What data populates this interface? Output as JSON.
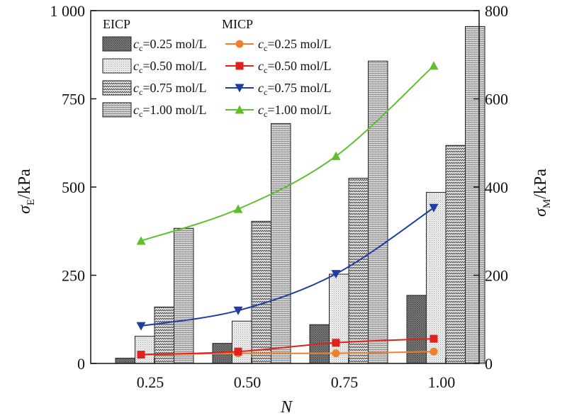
{
  "chart_data": {
    "type": "bar",
    "categories": [
      "0.25",
      "0.50",
      "0.75",
      "1.00"
    ],
    "xlabel": "N",
    "ylabel": {
      "symbol": "σ",
      "sub": "E",
      "unit": "/kPa"
    },
    "y2label": {
      "symbol": "σ",
      "sub": "M",
      "unit": "/kPa"
    },
    "ylim": [
      0,
      1000
    ],
    "y2lim": [
      0,
      800
    ],
    "yticks": [
      {
        "value": 0,
        "label": "0"
      },
      {
        "value": 250,
        "label": "250"
      },
      {
        "value": 500,
        "label": "500"
      },
      {
        "value": 750,
        "label": "750"
      },
      {
        "value": 1000,
        "label": "1 000"
      }
    ],
    "y2ticks": [
      {
        "value": 0,
        "label": "0"
      },
      {
        "value": 200,
        "label": "200"
      },
      {
        "value": 400,
        "label": "400"
      },
      {
        "value": 600,
        "label": "600"
      },
      {
        "value": 800,
        "label": "800"
      }
    ],
    "grid": false,
    "legend_position": "top-left",
    "legend_groups": {
      "bars": "EICP",
      "lines": "MICP"
    },
    "bar_series": [
      {
        "name": "cc=0.25 mol/L",
        "sym": "c",
        "sub": "c",
        "rest": "=0.25 mol/L",
        "pattern": "dense",
        "values": [
          15,
          57,
          110,
          193
        ]
      },
      {
        "name": "cc=0.50 mol/L",
        "sym": "c",
        "sub": "c",
        "rest": "=0.50 mol/L",
        "pattern": "dots",
        "values": [
          77,
          120,
          253,
          485
        ]
      },
      {
        "name": "cc=0.75 mol/L",
        "sym": "c",
        "sub": "c",
        "rest": "=0.75 mol/L",
        "pattern": "wave",
        "values": [
          160,
          403,
          525,
          618
        ]
      },
      {
        "name": "cc=1.00 mol/L",
        "sym": "c",
        "sub": "c",
        "rest": "=1.00 mol/L",
        "pattern": "fine",
        "values": [
          383,
          680,
          857,
          955
        ]
      }
    ],
    "line_series": [
      {
        "name": "cc=0.25 mol/L",
        "sym": "c",
        "sub": "c",
        "rest": "=0.25 mol/L",
        "color": "#f07f2a",
        "marker": "circle",
        "values": [
          20,
          23,
          23,
          27
        ]
      },
      {
        "name": "cc=0.50 mol/L",
        "sym": "c",
        "sub": "c",
        "rest": "=0.50 mol/L",
        "color": "#e0221f",
        "marker": "square",
        "values": [
          20,
          27,
          47,
          56
        ]
      },
      {
        "name": "cc=0.75 mol/L",
        "sym": "c",
        "sub": "c",
        "rest": "=0.75 mol/L",
        "color": "#1f3ea3",
        "marker": "triangle-down",
        "values": [
          85,
          120,
          203,
          353
        ]
      },
      {
        "name": "cc=1.00 mol/L",
        "sym": "c",
        "sub": "c",
        "rest": "=1.00 mol/L",
        "color": "#5fbf2a",
        "marker": "triangle-up",
        "values": [
          278,
          350,
          470,
          675
        ]
      }
    ]
  }
}
